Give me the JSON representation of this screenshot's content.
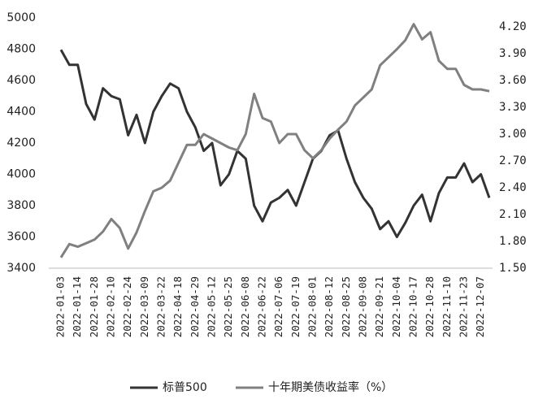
{
  "chart_data": {
    "type": "line",
    "categories": [
      "2022-01-03",
      null,
      "2022-01-14",
      null,
      "2022-01-28",
      null,
      "2022-02-10",
      null,
      "2022-02-24",
      null,
      "2022-03-09",
      null,
      "2022-03-22",
      null,
      "2022-04-18",
      null,
      "2022-04-29",
      null,
      "2022-05-12",
      null,
      "2022-05-25",
      null,
      "2022-06-08",
      null,
      "2022-06-22",
      null,
      "2022-07-06",
      null,
      "2022-07-19",
      null,
      "2022-08-01",
      null,
      "2022-08-12",
      null,
      "2022-08-25",
      null,
      "2022-09-08",
      null,
      "2022-09-21",
      null,
      "2022-10-04",
      null,
      "2022-10-17",
      null,
      "2022-10-28",
      null,
      "2022-11-10",
      null,
      "2022-11-23",
      null,
      "2022-12-07",
      null
    ],
    "series": [
      {
        "name": "标普500",
        "color": "#333333",
        "values": [
          4796,
          4700,
          4700,
          4450,
          4350,
          4550,
          4500,
          4480,
          4250,
          4380,
          4200,
          4400,
          4500,
          4580,
          4550,
          4400,
          4300,
          4150,
          4200,
          3930,
          4000,
          4150,
          4100,
          3800,
          3700,
          3820,
          3850,
          3900,
          3800,
          3950,
          4100,
          4150,
          4250,
          4280,
          4100,
          3950,
          3850,
          3780,
          3650,
          3700,
          3600,
          3690,
          3800,
          3870,
          3700,
          3880,
          3980,
          3980,
          4070,
          3950,
          4000,
          3850
        ]
      },
      {
        "name": "十年期美债收益率（%）",
        "color": "#808080",
        "axis": "y2",
        "values": [
          1.62,
          1.77,
          1.74,
          1.78,
          1.82,
          1.91,
          2.05,
          1.95,
          1.72,
          1.9,
          2.14,
          2.36,
          2.4,
          2.48,
          2.68,
          2.88,
          2.88,
          3.0,
          2.95,
          2.9,
          2.85,
          2.82,
          3.0,
          3.45,
          3.18,
          3.14,
          2.9,
          3.0,
          3.0,
          2.82,
          2.73,
          2.82,
          2.95,
          3.05,
          3.14,
          3.32,
          3.41,
          3.5,
          3.77,
          3.86,
          3.95,
          4.05,
          4.23,
          4.06,
          4.14,
          3.82,
          3.73,
          3.73,
          3.55,
          3.5,
          3.5,
          3.48
        ]
      }
    ],
    "ylim": [
      3400,
      5000
    ],
    "yticks": [
      3400,
      3600,
      3800,
      4000,
      4200,
      4400,
      4600,
      4800,
      5000
    ],
    "y2lim": [
      1.5,
      4.3
    ],
    "y2ticks": [
      {
        "value": 1.5,
        "label": "1.50"
      },
      {
        "value": 1.8,
        "label": "1.80"
      },
      {
        "value": 2.1,
        "label": "2.10"
      },
      {
        "value": 2.4,
        "label": "2.40"
      },
      {
        "value": 2.7,
        "label": "2.70"
      },
      {
        "value": 3.0,
        "label": "3.00"
      },
      {
        "value": 3.3,
        "label": "3.30"
      },
      {
        "value": 3.6,
        "label": "3.60"
      },
      {
        "value": 3.9,
        "label": "3.90"
      },
      {
        "value": 4.2,
        "label": "4.20"
      }
    ],
    "grid": false,
    "legend": "bottom"
  }
}
